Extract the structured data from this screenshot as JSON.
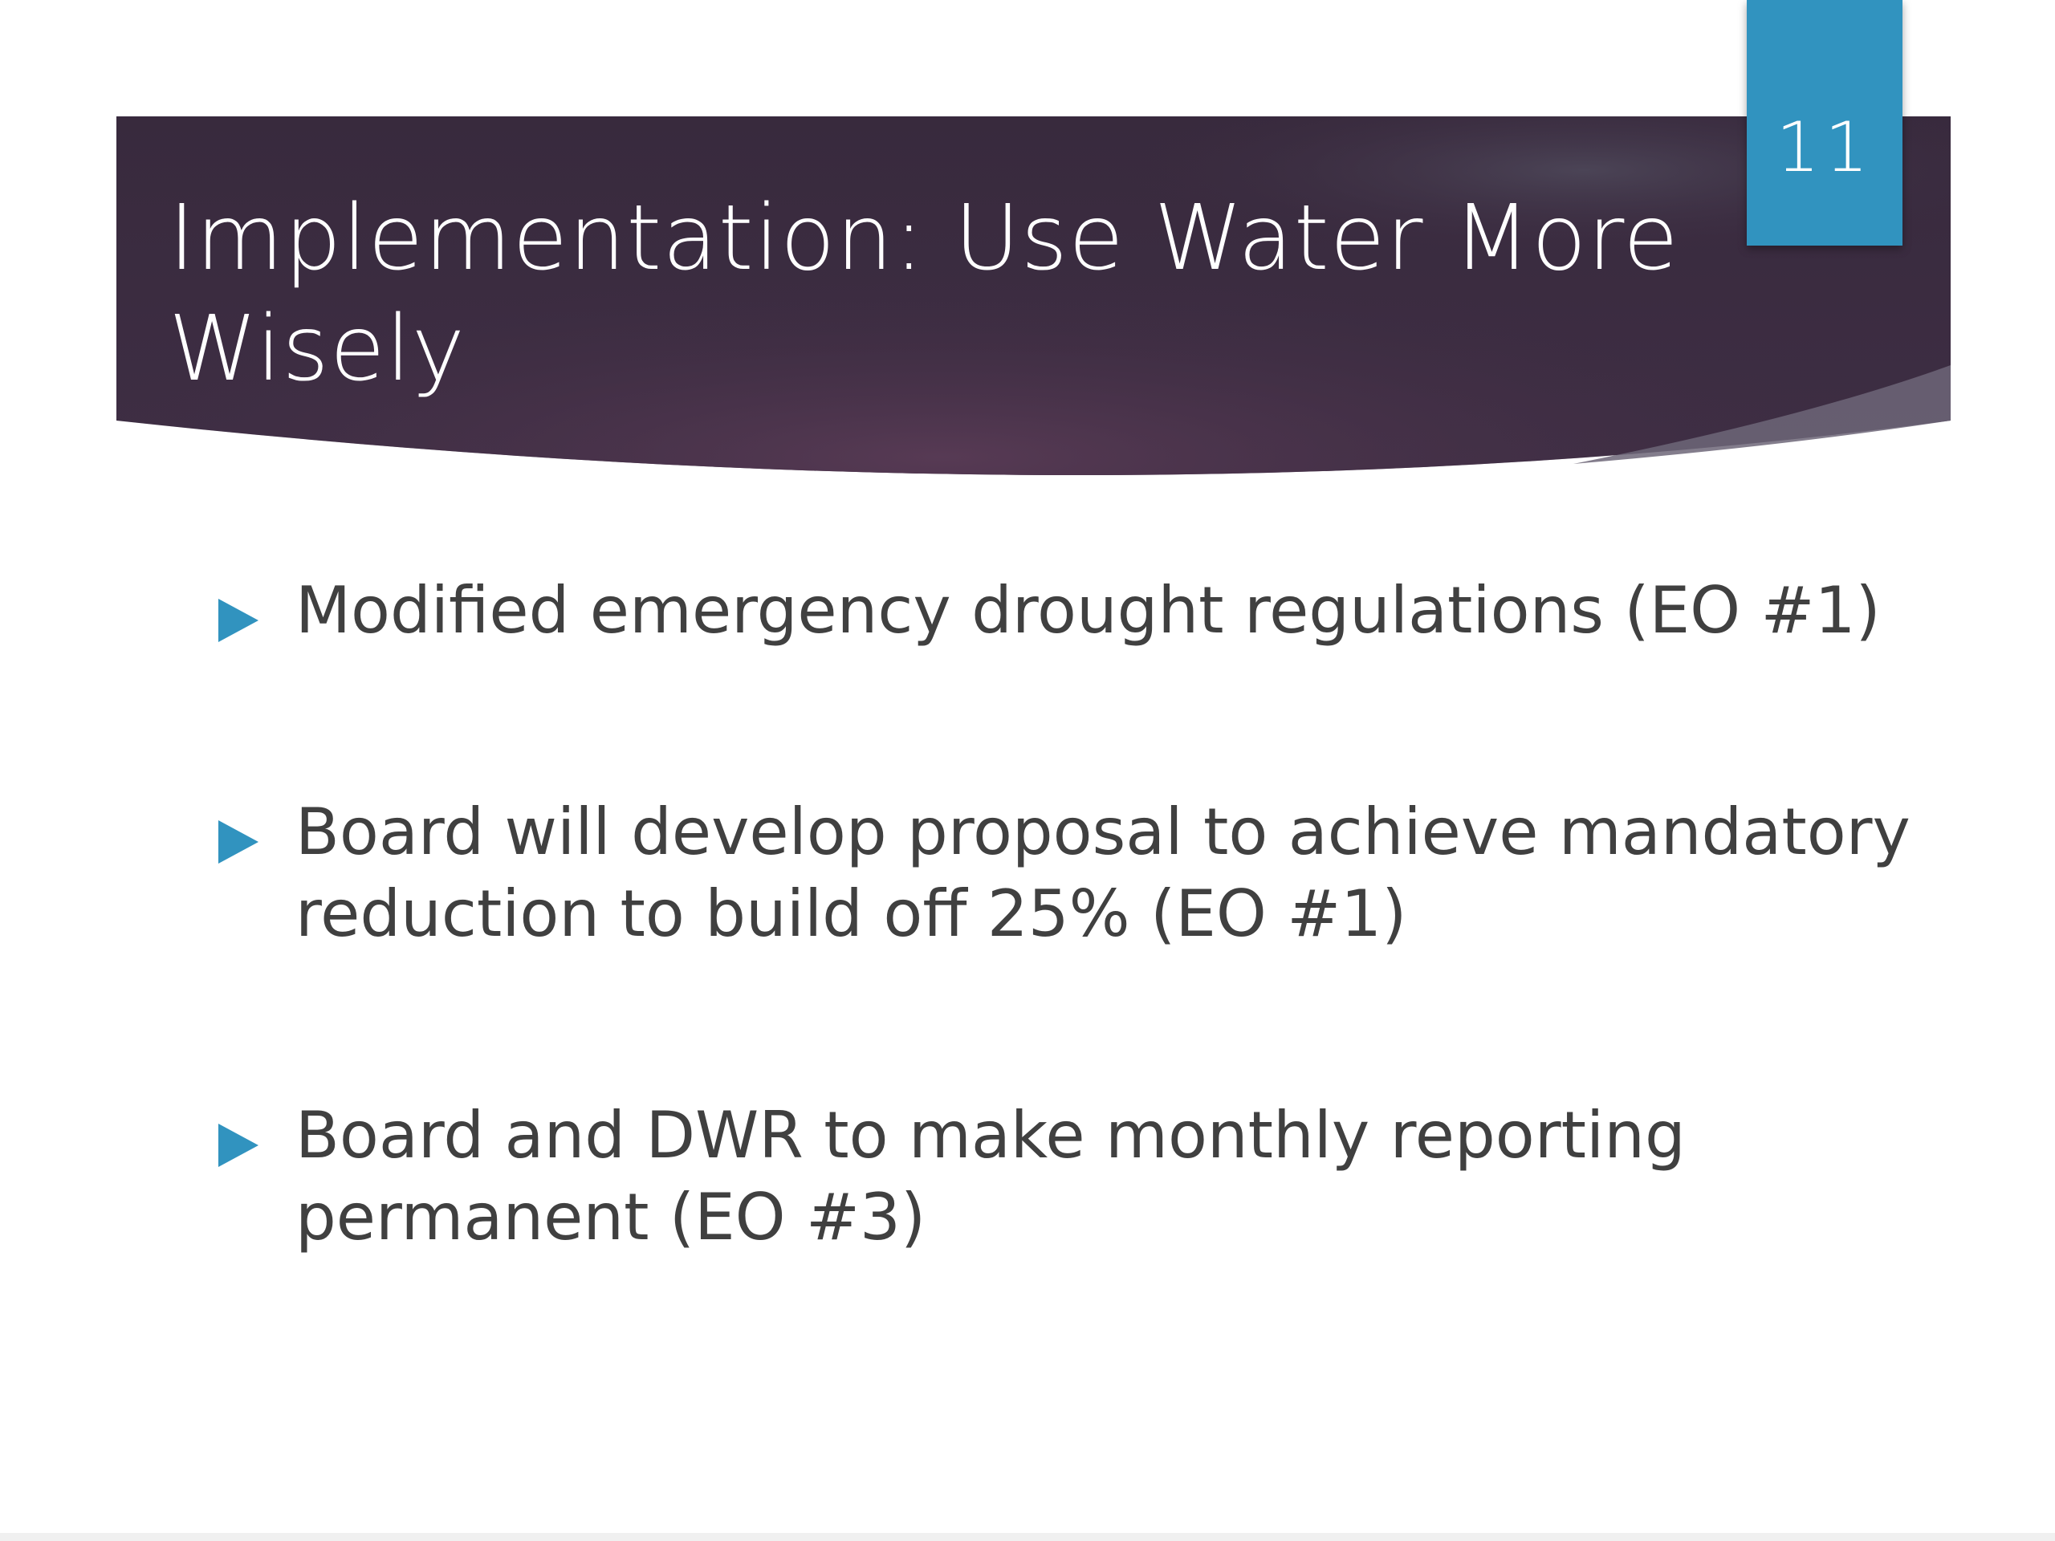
{
  "slide": {
    "number": "11",
    "title": "Implementation: Use Water More Wisely",
    "bullets": [
      "Modified emergency drought regulations (EO #1)",
      "Board will develop proposal to achieve mandatory reduction to build off 25% (EO #1)",
      "Board and DWR to make monthly reporting permanent (EO #3)"
    ]
  },
  "theme": {
    "banner_color": "#3b2b40",
    "accent_color": "#3193bf",
    "body_text_color": "#404040",
    "bullet_icon": "triangle-right-icon"
  }
}
